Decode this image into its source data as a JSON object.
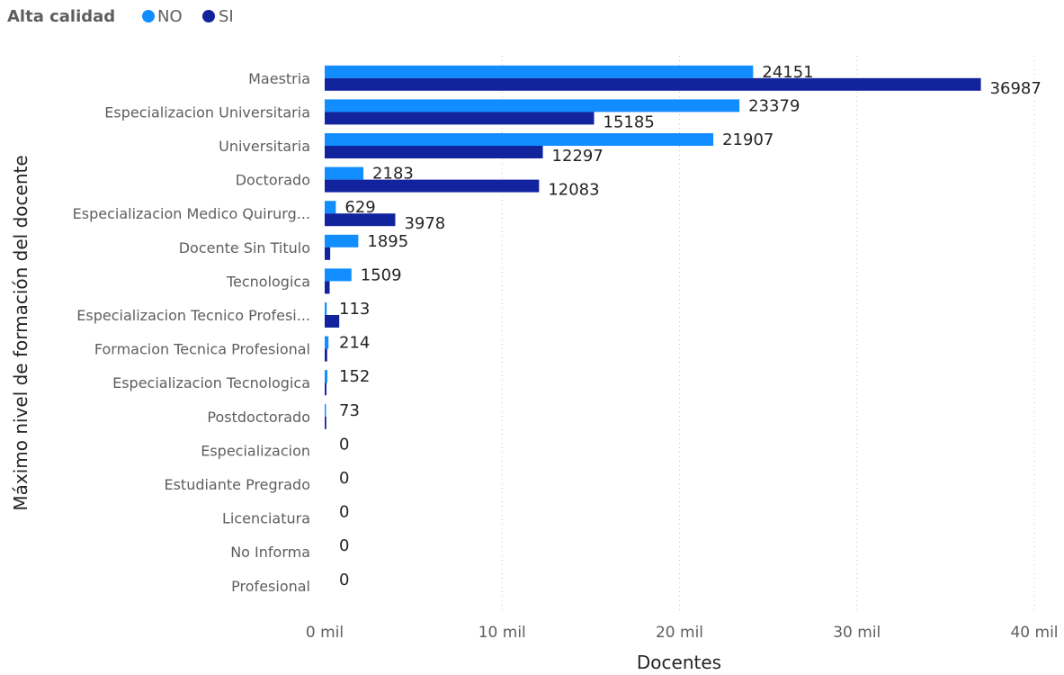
{
  "chart_data": {
    "type": "bar",
    "orientation": "horizontal",
    "legend": {
      "title": "Alta calidad",
      "position": "top-left",
      "entries": [
        {
          "name": "NO",
          "color": "#118dff"
        },
        {
          "name": "SI",
          "color": "#12239e"
        }
      ]
    },
    "xlabel": "Docentes",
    "ylabel": "Máximo nivel de formación del docente",
    "xlim": [
      0,
      40000
    ],
    "xticks": [
      0,
      10000,
      20000,
      30000,
      40000
    ],
    "xtick_labels": [
      "0 mil",
      "10 mil",
      "20 mil",
      "30 mil",
      "40 mil"
    ],
    "grid": true,
    "categories": [
      "Maestria",
      "Especializacion Universitaria",
      "Universitaria",
      "Doctorado",
      "Especializacion Medico Quirurg...",
      "Docente Sin Titulo",
      "Tecnologica",
      "Especializacion Tecnico Profesi...",
      "Formacion Tecnica Profesional",
      "Especializacion Tecnologica",
      "Postdoctorado",
      "Especializacion",
      "Estudiante Pregrado",
      "Licenciatura",
      "No Informa",
      "Profesional"
    ],
    "series": [
      {
        "name": "NO",
        "color": "#118dff",
        "values": [
          24151,
          23379,
          21907,
          2183,
          629,
          1895,
          1509,
          113,
          214,
          152,
          73,
          0,
          0,
          0,
          0,
          0
        ],
        "labels": [
          "24151",
          "23379",
          "21907",
          "2183",
          "629",
          "1895",
          "1509",
          "113",
          "214",
          "152",
          "73",
          "0",
          "0",
          "0",
          "0",
          "0"
        ]
      },
      {
        "name": "SI",
        "color": "#12239e",
        "values": [
          36987,
          15185,
          12297,
          12083,
          3978,
          310,
          280,
          820,
          140,
          100,
          90,
          0,
          0,
          0,
          0,
          0
        ],
        "labels": [
          "36987",
          "15185",
          "12297",
          "12083",
          "3978",
          "",
          "",
          "",
          "",
          "",
          "",
          "",
          "",
          "",
          "",
          ""
        ]
      }
    ]
  }
}
